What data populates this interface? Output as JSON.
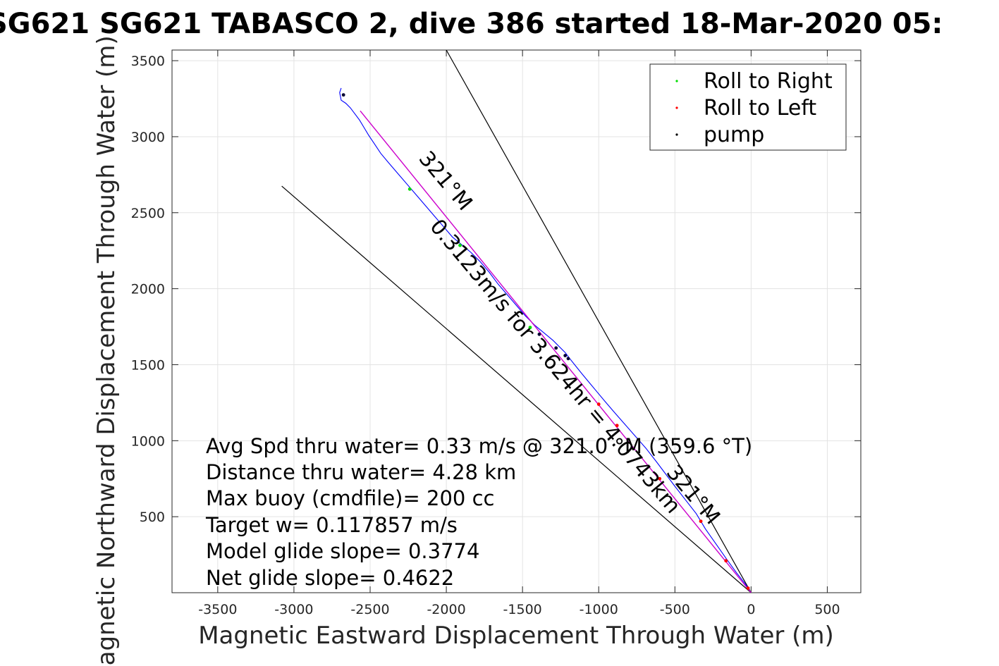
{
  "chart_data": {
    "type": "line",
    "title": "SG621 SG621 TABASCO 2, dive 386 started 18-Mar-2020 05:",
    "xlabel": "Magnetic Eastward Displacement Through Water (m)",
    "ylabel": "Magnetic Northward Displacement Through Water (m)",
    "xlim": [
      -3800,
      720
    ],
    "ylim": [
      0,
      3570
    ],
    "xticks": [
      -3500,
      -3000,
      -2500,
      -2000,
      -1500,
      -1000,
      -500,
      0,
      500
    ],
    "yticks": [
      500,
      1000,
      1500,
      2000,
      2500,
      3000,
      3500
    ],
    "grid": true,
    "legend_position": "top-right",
    "legend": [
      {
        "label": "Roll to Right",
        "color": "#00dd00"
      },
      {
        "label": "Roll to Left",
        "color": "#ff0000"
      },
      {
        "label": "pump",
        "color": "#000000"
      }
    ],
    "series": [
      {
        "color": "#0000ff",
        "x": [
          0,
          -40,
          -95,
          -160,
          -230,
          -300,
          -360,
          -430,
          -500,
          -560,
          -620,
          -690,
          -760,
          -830,
          -900,
          -960,
          -1010,
          -1060,
          -1110,
          -1150,
          -1190,
          -1220,
          -1260,
          -1300,
          -1360,
          -1420,
          -1480,
          -1540,
          -1600,
          -1660,
          -1720,
          -1780,
          -1840,
          -1900,
          -1960,
          -2020,
          -2080,
          -2140,
          -2200,
          -2260,
          -2320,
          -2380,
          -2430,
          -2470,
          -2510,
          -2540,
          -2570,
          -2600,
          -2630,
          -2660,
          -2690,
          -2700,
          -2690
        ],
        "y": [
          0,
          60,
          130,
          220,
          320,
          420,
          520,
          610,
          700,
          780,
          860,
          950,
          1030,
          1110,
          1190,
          1260,
          1320,
          1380,
          1440,
          1490,
          1540,
          1580,
          1620,
          1660,
          1710,
          1760,
          1820,
          1890,
          1960,
          2030,
          2110,
          2180,
          2240,
          2290,
          2340,
          2410,
          2480,
          2550,
          2620,
          2690,
          2760,
          2830,
          2890,
          2950,
          3010,
          3060,
          3110,
          3150,
          3190,
          3220,
          3240,
          3290,
          3320
        ]
      },
      {
        "color": "#cc00cc",
        "x": [
          0,
          -2565
        ],
        "y": [
          0,
          3170
        ]
      }
    ],
    "roll_right_points": [
      {
        "x": -2240,
        "y": 2655
      },
      {
        "x": -1910,
        "y": 2285
      },
      {
        "x": -1450,
        "y": 1745
      }
    ],
    "roll_left_points": [
      {
        "x": -1000,
        "y": 1240
      },
      {
        "x": -880,
        "y": 1100
      },
      {
        "x": -600,
        "y": 750
      },
      {
        "x": -330,
        "y": 470
      },
      {
        "x": -165,
        "y": 210
      },
      {
        "x": -20,
        "y": 30
      }
    ],
    "pump_points": [
      {
        "x": -2675,
        "y": 3275
      },
      {
        "x": -1390,
        "y": 1700
      },
      {
        "x": -1280,
        "y": 1610
      },
      {
        "x": -1220,
        "y": 1560
      },
      {
        "x": -1200,
        "y": 1540
      }
    ],
    "reference_lines": [
      {
        "x": [
          0,
          -2000
        ],
        "y": [
          0,
          3570
        ],
        "color": "#000000"
      },
      {
        "x": [
          0,
          -3080
        ],
        "y": [
          0,
          2675
        ],
        "color": "#000000"
      }
    ],
    "annotations": [
      {
        "text": "321°M",
        "x": -2040,
        "y": 2680,
        "rotate": 50
      },
      {
        "text": "0.3123m/s for 3.624hr = 4.0743km",
        "x": -1320,
        "y": 1460,
        "rotate": 50
      },
      {
        "text": "321°M",
        "x": -415,
        "y": 615,
        "rotate": 50
      }
    ],
    "info_lines": [
      "Avg Spd thru water=  0.33 m/s @ 321.0 °M (359.6 °T)",
      "Distance thru water=  4.28 km",
      "Max buoy (cmdfile)= 200 cc",
      "Target w= 0.117857 m/s",
      "Model glide slope= 0.3774",
      "Net glide slope= 0.4622"
    ]
  }
}
